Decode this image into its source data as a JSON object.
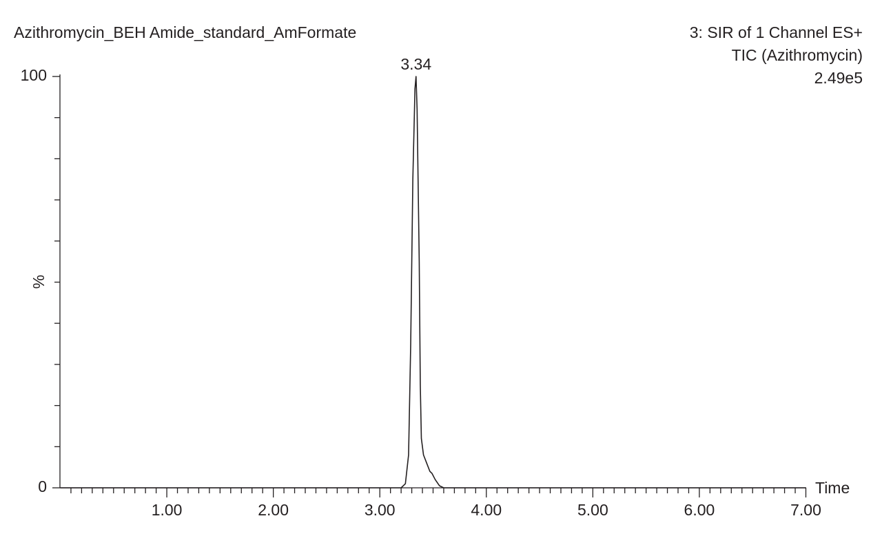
{
  "chart_data": {
    "type": "line",
    "title": "Azithromycin_BEH Amide_standard_AmFormate",
    "subtitle_lines": [
      "3: SIR of 1 Channel ES+",
      "TIC (Azithromycin)",
      "2.49e5"
    ],
    "x_label": "Time",
    "y_label": "%",
    "xlim": [
      0,
      7
    ],
    "ylim": [
      0,
      100
    ],
    "xticks": [
      {
        "value": 1,
        "label": "1.00"
      },
      {
        "value": 2,
        "label": "2.00"
      },
      {
        "value": 3,
        "label": "3.00"
      },
      {
        "value": 4,
        "label": "4.00"
      },
      {
        "value": 5,
        "label": "5.00"
      },
      {
        "value": 6,
        "label": "6.00"
      },
      {
        "value": 7,
        "label": "7.00"
      }
    ],
    "x_minor_ticks": [
      0.1,
      0.2,
      0.3,
      0.4,
      0.5,
      0.6,
      0.7,
      0.8,
      0.9,
      1.1,
      1.2,
      1.3,
      1.4,
      1.5,
      1.6,
      1.7,
      1.8,
      1.9,
      2.1,
      2.2,
      2.3,
      2.4,
      2.5,
      2.6,
      2.7,
      2.8,
      2.9,
      3.1,
      3.2,
      3.3,
      3.4,
      3.5,
      3.6,
      3.7,
      3.8,
      3.9,
      4.1,
      4.2,
      4.3,
      4.4,
      4.5,
      4.6,
      4.7,
      4.8,
      4.9,
      5.1,
      5.2,
      5.3,
      5.4,
      5.5,
      5.6,
      5.7,
      5.8,
      5.9,
      6.1,
      6.2,
      6.3,
      6.4,
      6.5,
      6.6,
      6.7,
      6.8,
      6.9
    ],
    "yticks": [
      0,
      100
    ],
    "y_minor_ticks": [
      10,
      20,
      30,
      40,
      50,
      60,
      70,
      80,
      90
    ],
    "series": [
      {
        "color": "#231f20",
        "x": [
          0,
          3.2,
          3.24,
          3.27,
          3.29,
          3.31,
          3.33,
          3.34,
          3.35,
          3.37,
          3.38,
          3.39,
          3.41,
          3.44,
          3.47,
          3.49,
          3.52,
          3.56,
          3.6,
          7
        ],
        "values": [
          0,
          0,
          1,
          8,
          35,
          75,
          97,
          100,
          92,
          55,
          25,
          12,
          8,
          6,
          4,
          3.5,
          2,
          0.5,
          0,
          0
        ]
      }
    ],
    "peak_labels": [
      {
        "x": 3.34,
        "y": 100
      }
    ]
  }
}
